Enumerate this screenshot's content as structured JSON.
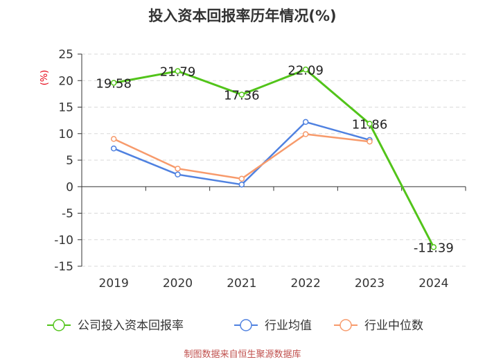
{
  "chart_data": {
    "type": "line",
    "title": "投入资本回报率历年情况(%)",
    "ylabel": "(%)",
    "xlabel": "",
    "categories": [
      "2019",
      "2020",
      "2021",
      "2022",
      "2023",
      "2024"
    ],
    "ylim": [
      -15,
      25
    ],
    "yticks": [
      25,
      20,
      15,
      10,
      5,
      0,
      -5,
      -10,
      -15
    ],
    "grid": true,
    "legend_position": "bottom",
    "series": [
      {
        "name": "公司投入资本回报率",
        "color": "#52c41a",
        "values": [
          19.58,
          21.79,
          17.36,
          22.09,
          11.86,
          -11.39
        ],
        "labels": [
          "19.58",
          "21.79",
          "17.36",
          "22.09",
          "11.86",
          "-11.39"
        ]
      },
      {
        "name": "行业均值",
        "color": "#4f81e0",
        "values": [
          7.2,
          2.3,
          0.4,
          12.2,
          8.8,
          null
        ]
      },
      {
        "name": "行业中位数",
        "color": "#f79a6b",
        "values": [
          9.0,
          3.4,
          1.5,
          9.9,
          8.5,
          null
        ]
      }
    ]
  },
  "source": "制图数据来自恒生聚源数据库"
}
